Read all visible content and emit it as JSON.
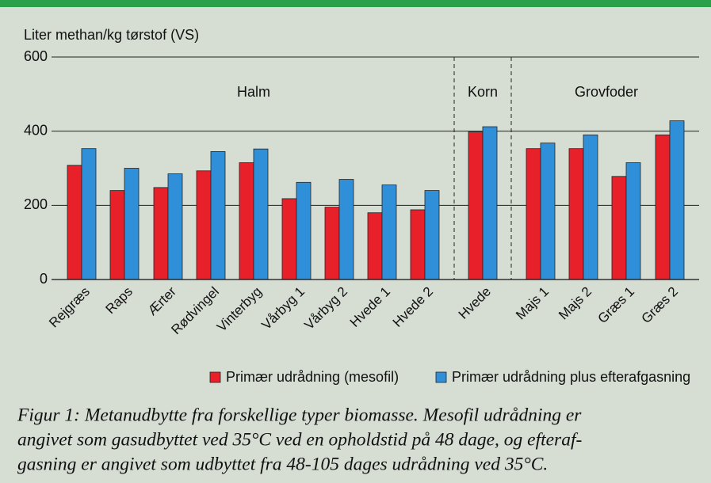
{
  "chart_data": {
    "type": "bar",
    "y_axis_label": "Liter methan/kg tørstof (VS)",
    "categories": [
      "Rejgræs",
      "Raps",
      "Ærter",
      "Rødvingel",
      "Vinterbyg",
      "Vårbyg 1",
      "Vårbyg 2",
      "Hvede 1",
      "Hvede 2",
      "Hvede",
      "Majs 1",
      "Majs 2",
      "Græs 1",
      "Græs 2"
    ],
    "group_labels": [
      "Halm",
      "Korn",
      "Grovfoder"
    ],
    "series": [
      {
        "name": "Primær udrådning (mesofil)",
        "color": "#e8202a",
        "values": [
          308,
          240,
          248,
          293,
          315,
          218,
          195,
          180,
          188,
          398,
          353,
          353,
          278,
          390
        ]
      },
      {
        "name": "Primær udrådning plus efterafgasning",
        "color": "#2f8fd8",
        "values": [
          353,
          300,
          285,
          345,
          352,
          262,
          270,
          255,
          240,
          412,
          368,
          390,
          315,
          428
        ]
      }
    ],
    "ylim": [
      0,
      600
    ],
    "yticks": [
      0,
      200,
      400,
      600
    ],
    "grid": true,
    "caption": [
      "Figur 1: Metanudbytte fra forskellige typer biomasse. Mesofil udrådning er",
      "angivet som gasudbyttet ved 35°C ved en opholdstid på 48 dage, og efteraf-",
      "gasning er angivet som udbyttet fra 48-105 dages udrådning ved 35°C."
    ]
  }
}
